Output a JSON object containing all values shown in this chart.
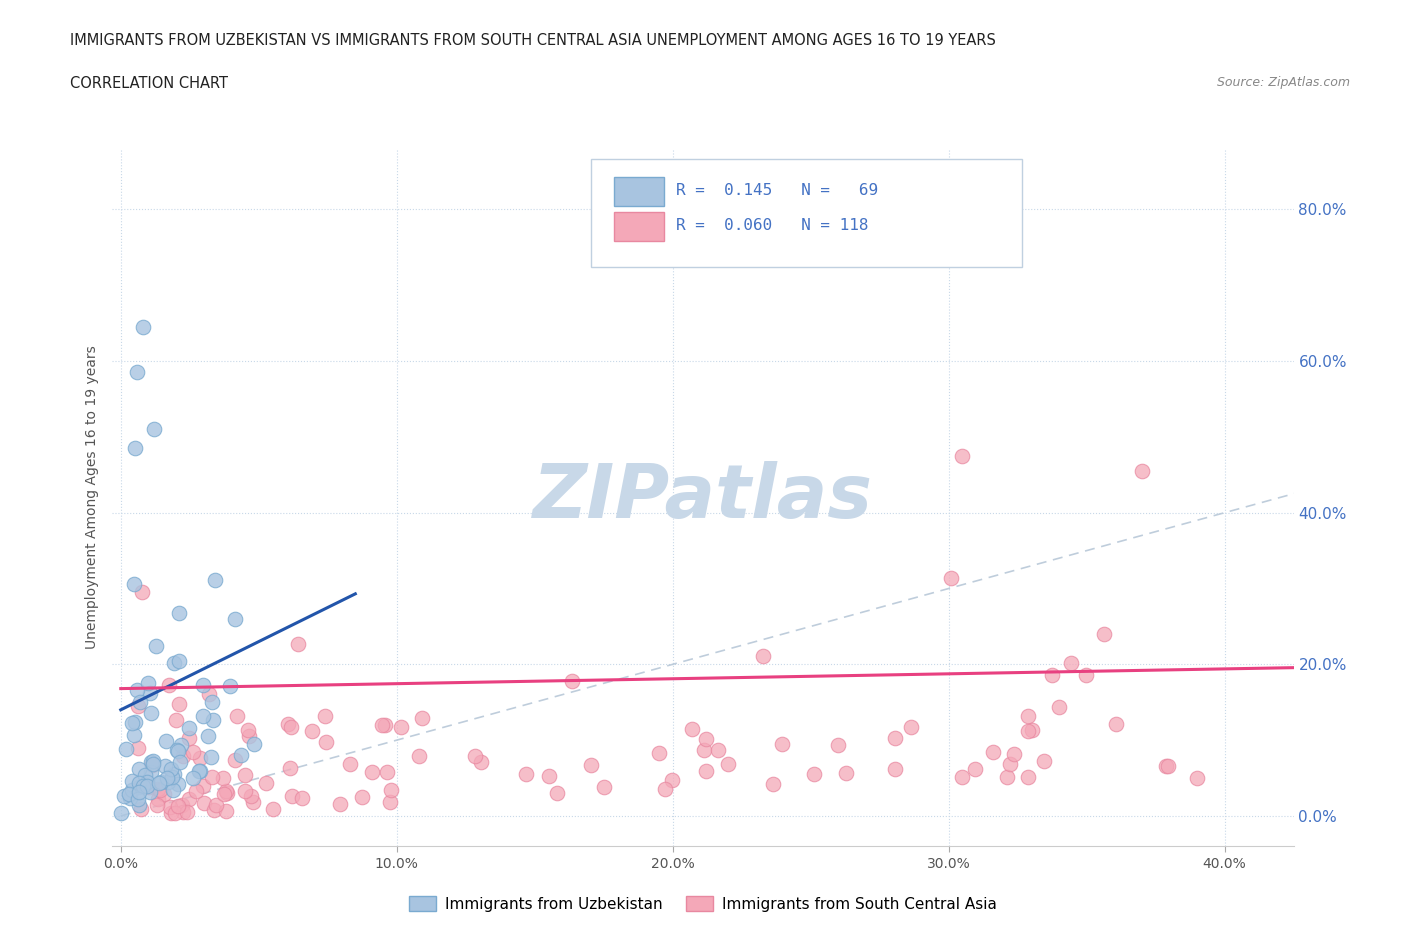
{
  "title_line1": "IMMIGRANTS FROM UZBEKISTAN VS IMMIGRANTS FROM SOUTH CENTRAL ASIA UNEMPLOYMENT AMONG AGES 16 TO 19 YEARS",
  "title_line2": "CORRELATION CHART",
  "source": "Source: ZipAtlas.com",
  "ylabel": "Unemployment Among Ages 16 to 19 years",
  "color_uzbekistan": "#a8c4e0",
  "color_uzbekistan_edge": "#7aaad0",
  "color_south_central": "#f4a8b8",
  "color_south_central_edge": "#e888a0",
  "color_trendline_uzbekistan": "#2255aa",
  "color_trendline_south_central": "#e84080",
  "color_ref_line": "#b8c8d8",
  "color_grid": "#c8d8e8",
  "legend_text_color": "#4472c4",
  "watermark_color": "#c8d8e8",
  "right_tick_color": "#4472c4",
  "xlim_min": -0.003,
  "xlim_max": 0.425,
  "ylim_min": -0.04,
  "ylim_max": 0.88
}
